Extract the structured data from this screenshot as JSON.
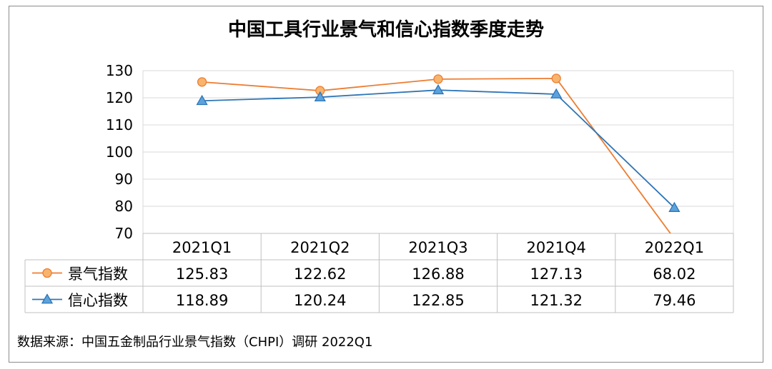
{
  "chart_data": {
    "type": "line",
    "title": "中国工具行业景气和信心指数季度走势",
    "categories": [
      "2021Q1",
      "2021Q2",
      "2021Q3",
      "2021Q4",
      "2022Q1"
    ],
    "ylim": [
      70,
      130
    ],
    "yticks": [
      70,
      80,
      90,
      100,
      110,
      120,
      130
    ],
    "grid": true,
    "data_table": true,
    "series": [
      {
        "name": "景气指数",
        "values": [
          125.83,
          122.62,
          126.88,
          127.13,
          68.02
        ],
        "display": [
          "125.83",
          "122.62",
          "126.88",
          "127.13",
          "68.02"
        ],
        "color": "#ED7D31",
        "marker": "circle",
        "marker_fill": "#F8B46C"
      },
      {
        "name": "信心指数",
        "values": [
          118.89,
          120.24,
          122.85,
          121.32,
          79.46
        ],
        "display": [
          "118.89",
          "120.24",
          "122.85",
          "121.32",
          "79.46"
        ],
        "color": "#2E75B6",
        "marker": "triangle",
        "marker_fill": "#5BA3DC"
      }
    ]
  },
  "source_note": "数据来源：中国五金制品行业景气指数（CHPI）调研 2022Q1"
}
